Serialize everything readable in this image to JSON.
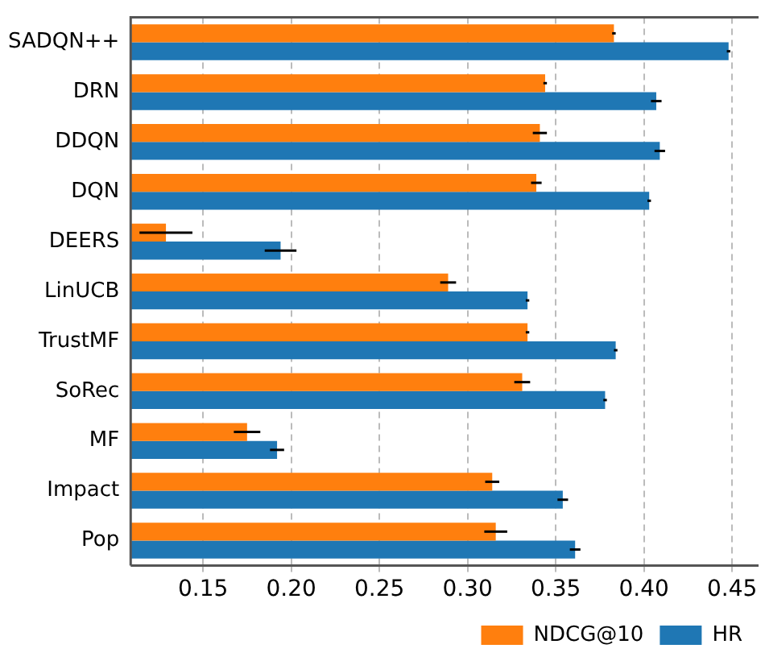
{
  "chart_data": {
    "type": "bar",
    "orientation": "horizontal",
    "categories": [
      "SADQN++",
      "DRN",
      "DDQN",
      "DQN",
      "DEERS",
      "LinUCB",
      "TrustMF",
      "SoRec",
      "MF",
      "Impact",
      "Pop"
    ],
    "series": [
      {
        "name": "HR",
        "color": "#1f77b4",
        "values": [
          0.448,
          0.407,
          0.409,
          0.403,
          0.194,
          0.334,
          0.384,
          0.378,
          0.192,
          0.354,
          0.361
        ],
        "errors": [
          0.001,
          0.003,
          0.003,
          0.001,
          0.009,
          0.001,
          0.001,
          0.001,
          0.004,
          0.003,
          0.003
        ]
      },
      {
        "name": "NDCG@10",
        "color": "#ff7f0e",
        "values": [
          0.383,
          0.344,
          0.341,
          0.339,
          0.129,
          0.289,
          0.334,
          0.331,
          0.175,
          0.314,
          0.316
        ],
        "errors": [
          0.001,
          0.001,
          0.004,
          0.003,
          0.015,
          0.0045,
          0.001,
          0.0045,
          0.0075,
          0.004,
          0.0065
        ]
      }
    ],
    "xlim": [
      0.109,
      0.465
    ],
    "xticks": [
      {
        "value": 0.15,
        "label": "0.15"
      },
      {
        "value": 0.2,
        "label": "0.20"
      },
      {
        "value": 0.25,
        "label": "0.25"
      },
      {
        "value": 0.3,
        "label": "0.30"
      },
      {
        "value": 0.35,
        "label": "0.35"
      },
      {
        "value": 0.4,
        "label": "0.40"
      },
      {
        "value": 0.45,
        "label": "0.45"
      }
    ],
    "grid": "x",
    "legend": "bottom right"
  }
}
